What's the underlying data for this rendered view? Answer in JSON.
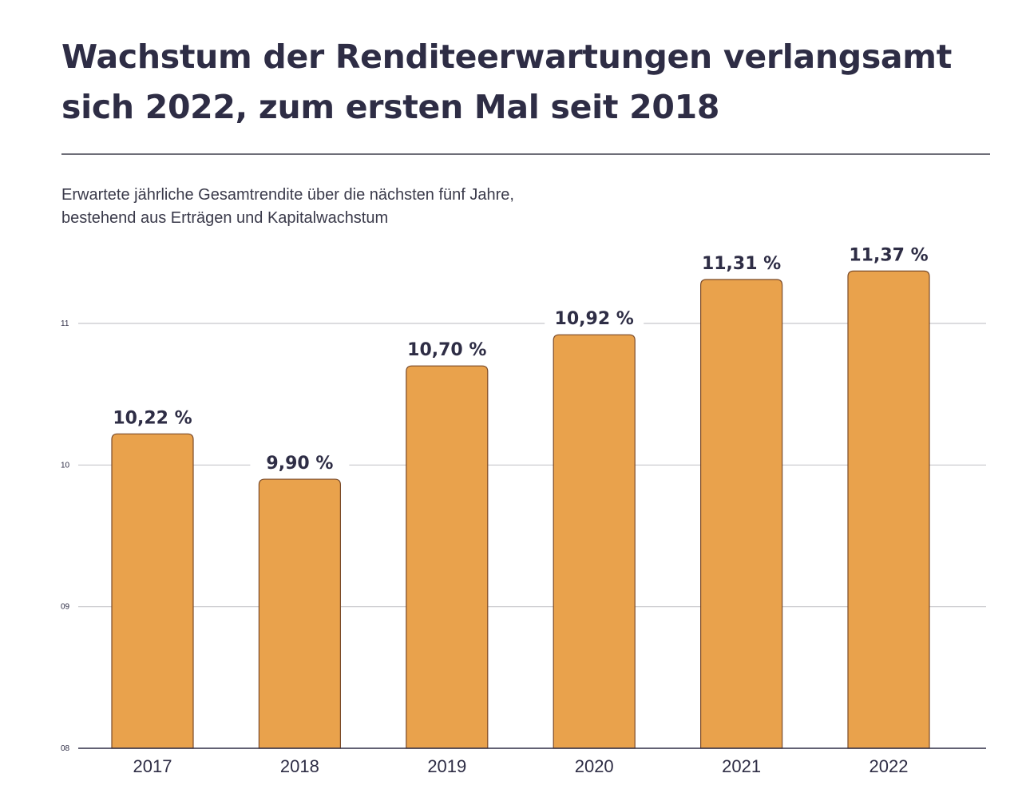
{
  "header": {
    "title": "Wachstum der Renditeerwartungen verlangsamt sich 2022, zum ersten Mal seit 2018",
    "subtitle_line1": "Erwartete jährliche Gesamtrendite über die nächsten fünf Jahre,",
    "subtitle_line2": "bestehend aus Erträgen und Kapitalwachstum"
  },
  "chart_data": {
    "type": "bar",
    "title": "Wachstum der Renditeerwartungen verlangsamt sich 2022, zum ersten Mal seit 2018",
    "subtitle": "Erwartete jährliche Gesamtrendite über die nächsten fünf Jahre, bestehend aus Erträgen und Kapitalwachstum",
    "categories": [
      "2017",
      "2018",
      "2019",
      "2020",
      "2021",
      "2022"
    ],
    "values": [
      10.22,
      9.9,
      10.7,
      10.92,
      11.31,
      11.37
    ],
    "value_labels": [
      "10,22 %",
      "9,90 %",
      "10,70 %",
      "10,92 %",
      "11,31 %",
      "11,37 %"
    ],
    "y_ticks": [
      8,
      9,
      10,
      11
    ],
    "y_tick_labels": [
      "08",
      "09",
      "10",
      "11"
    ],
    "ylim": [
      8,
      11.6
    ],
    "xlabel": "",
    "ylabel": "",
    "grid": true,
    "legend": "none",
    "colors": {
      "bar_fill": "#E9A24C",
      "bar_stroke": "#7a4a28",
      "gridline": "#c8c8cc",
      "axis": "#2e2d45",
      "text": "#2e2d45"
    }
  }
}
